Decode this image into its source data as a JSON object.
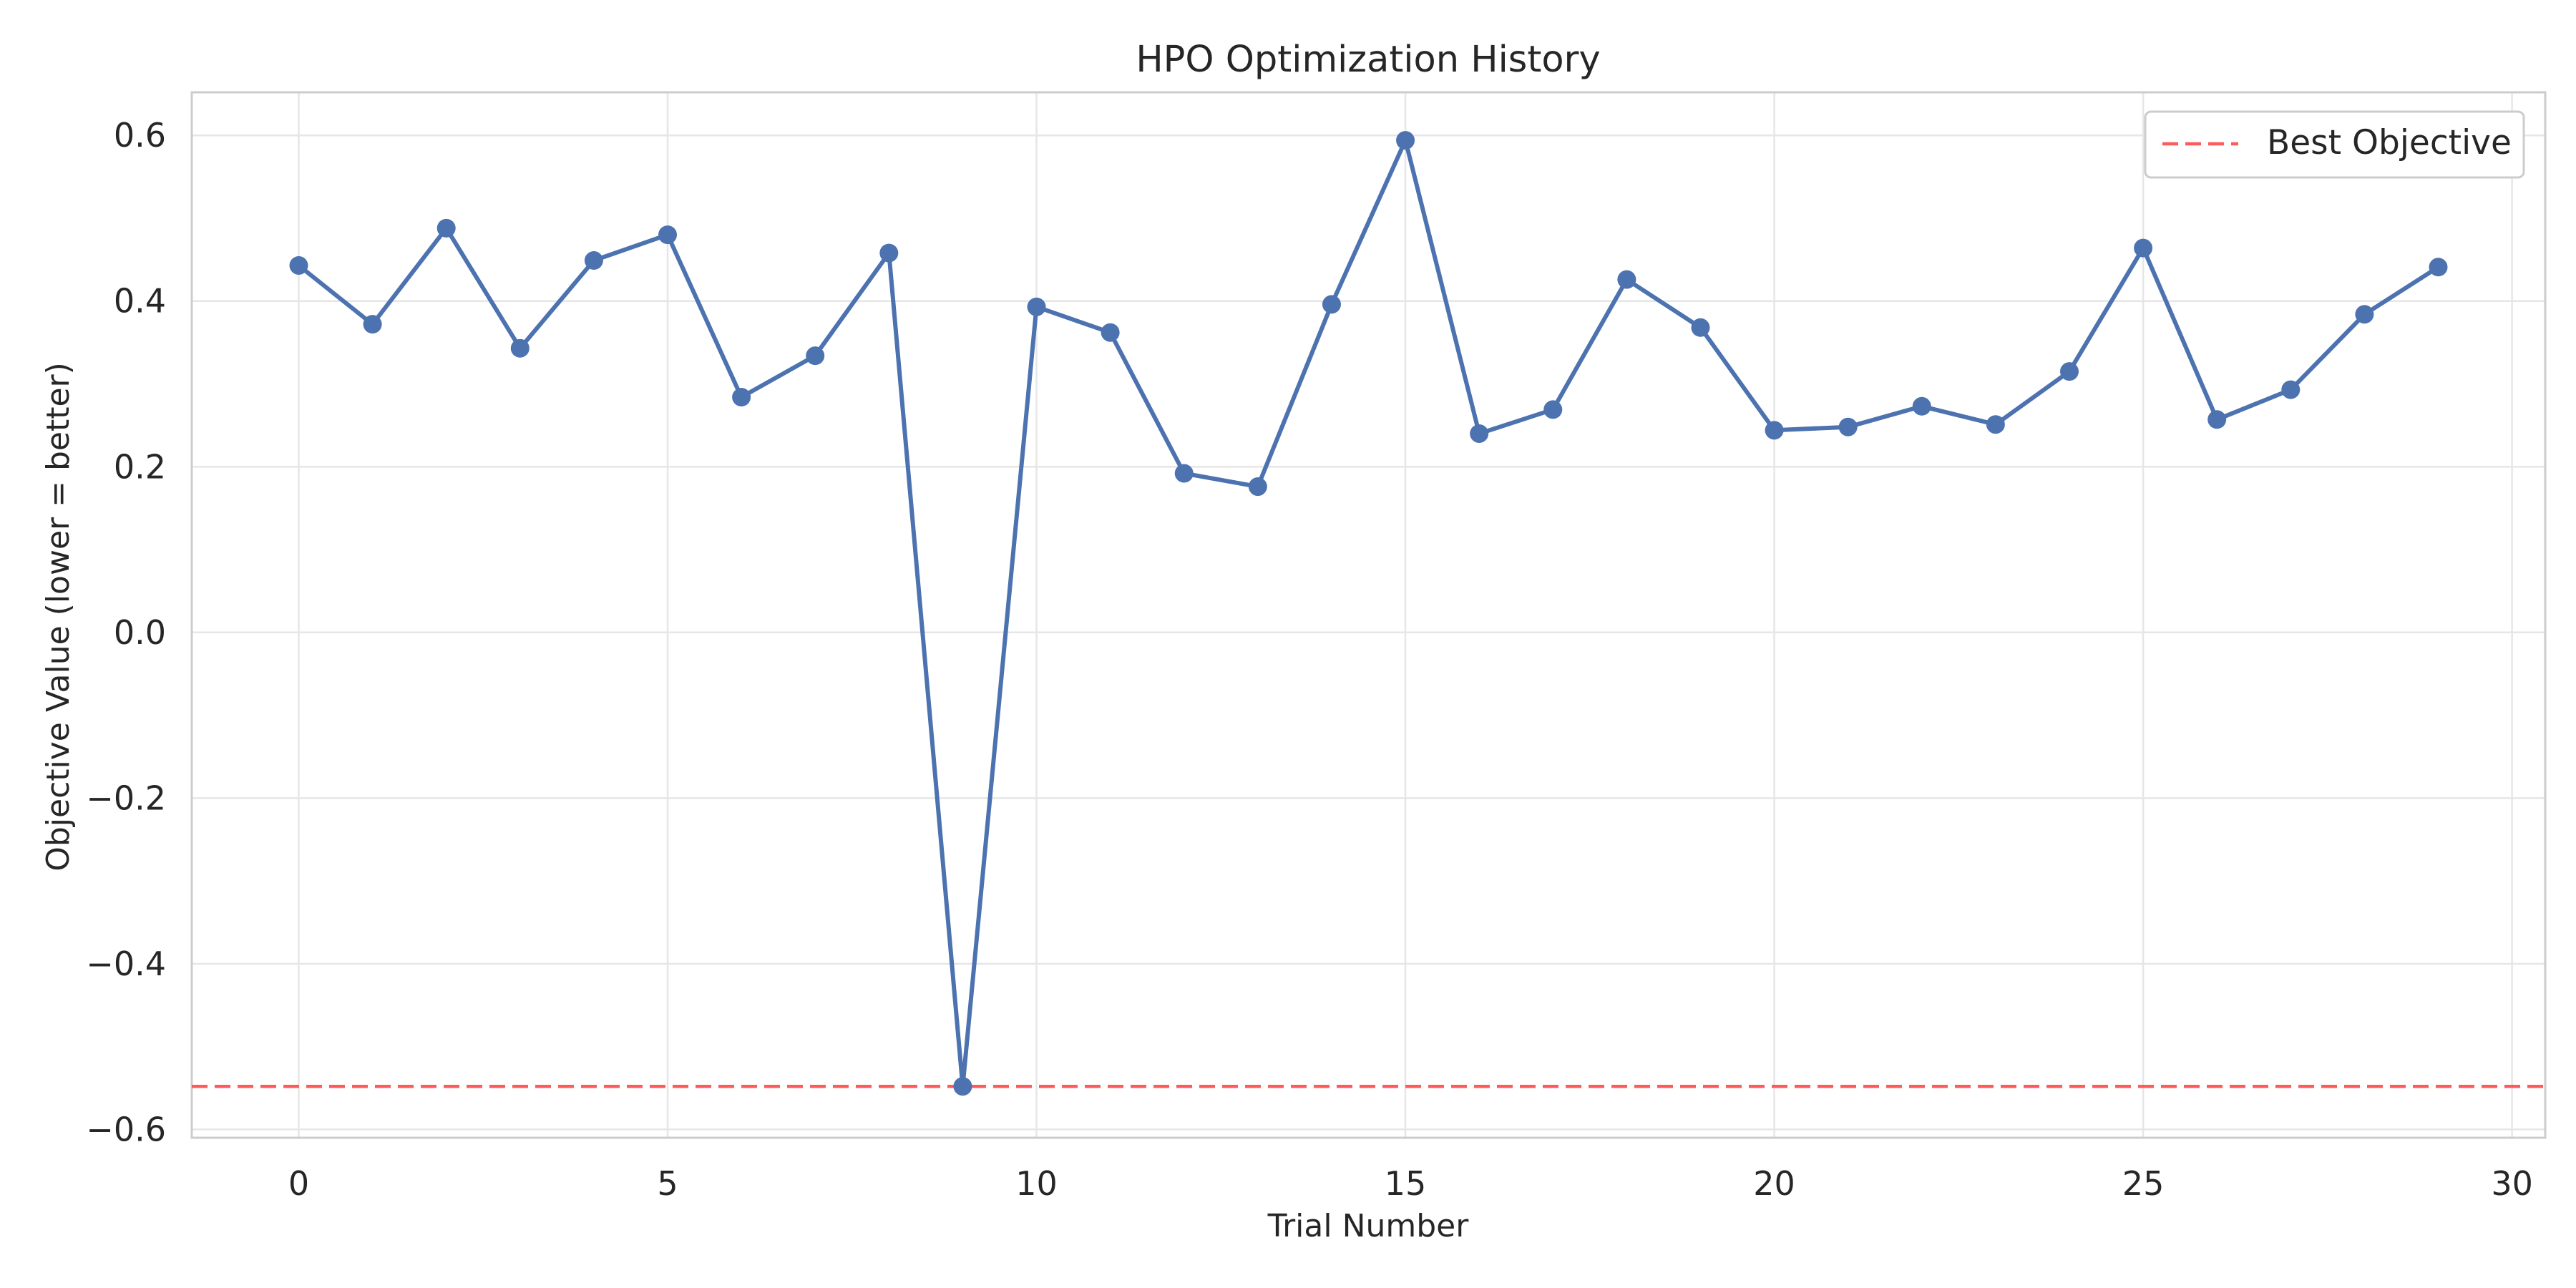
{
  "chart_data": {
    "type": "line",
    "title": "HPO Optimization History",
    "xlabel": "Trial Number",
    "ylabel": "Objective Value (lower = better)",
    "xlim": [
      -1.45,
      30.45
    ],
    "ylim": [
      -0.61,
      0.652
    ],
    "xticks": [
      0,
      5,
      10,
      15,
      20,
      25,
      30
    ],
    "xtick_labels": [
      "0",
      "5",
      "10",
      "15",
      "20",
      "25",
      "30"
    ],
    "yticks": [
      -0.6,
      -0.4,
      -0.2,
      0.0,
      0.2,
      0.4,
      0.6
    ],
    "ytick_labels": [
      "−0.6",
      "−0.4",
      "−0.2",
      "0.0",
      "0.2",
      "0.4",
      "0.6"
    ],
    "grid": true,
    "legend_position": "top-right",
    "x": [
      0,
      1,
      2,
      3,
      4,
      5,
      6,
      7,
      8,
      9,
      10,
      11,
      12,
      13,
      14,
      15,
      16,
      17,
      18,
      19,
      20,
      21,
      22,
      23,
      24,
      25,
      26,
      27,
      28,
      29
    ],
    "series": [
      {
        "values": [
          0.443,
          0.372,
          0.488,
          0.343,
          0.449,
          0.48,
          0.284,
          0.334,
          0.458,
          -0.548,
          0.393,
          0.362,
          0.192,
          0.176,
          0.396,
          0.594,
          0.24,
          0.269,
          0.426,
          0.368,
          0.244,
          0.248,
          0.273,
          0.251,
          0.315,
          0.464,
          0.257,
          0.293,
          0.384,
          0.441
        ],
        "color": "#4c72b0",
        "marker": "circle"
      }
    ],
    "reference_lines": [
      {
        "name": "Best Objective",
        "value": -0.548,
        "color": "#ff5a5a",
        "style": "dashed"
      }
    ]
  }
}
